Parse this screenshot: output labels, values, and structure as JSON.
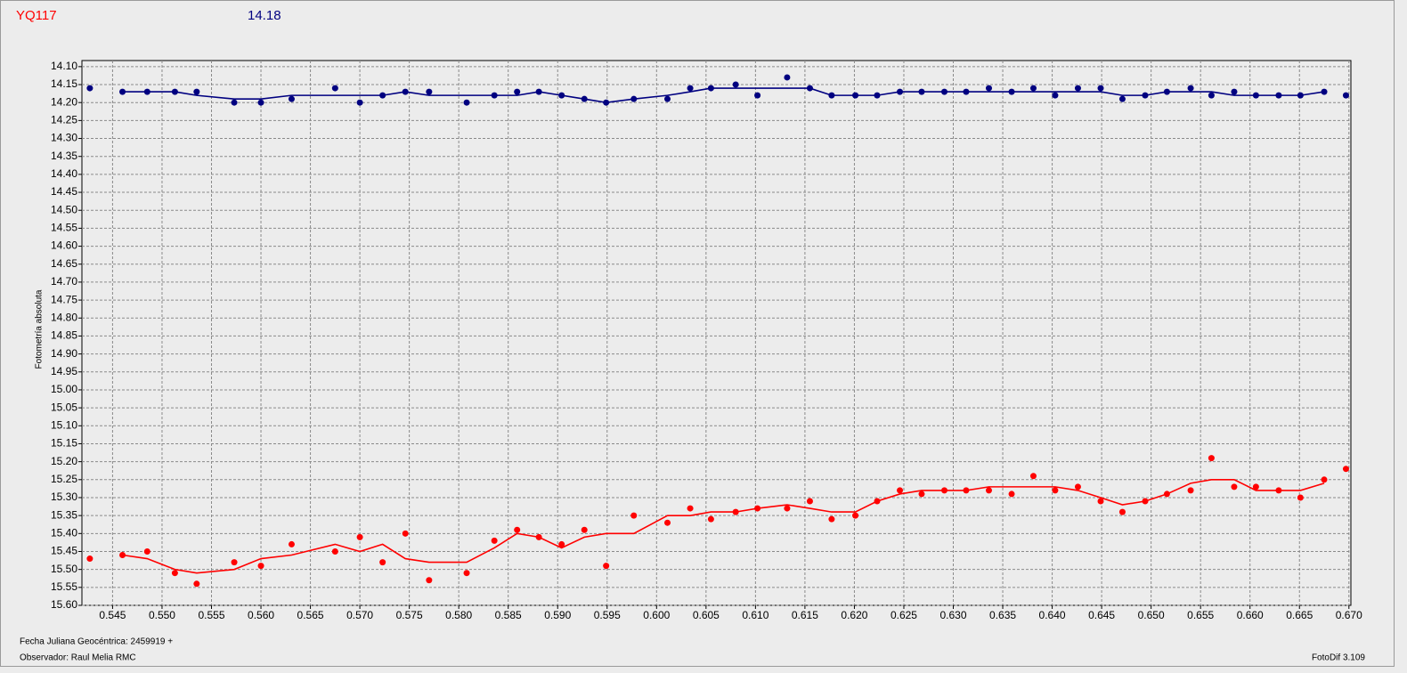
{
  "chart_data": {
    "type": "scatter",
    "title": "YQ117",
    "subtitle": "14.18",
    "title_color": "#ff0000",
    "subtitle_color": "#000080",
    "y_label": "Fotometría absoluta",
    "x_label": "Fecha Juliana Geocéntrica: 2459919 +",
    "observer": "Observador: Raul Melia RMC",
    "software": "FotoDif 3.109",
    "grid": true,
    "xlim": [
      0.5419,
      0.6702
    ],
    "ylim": [
      15.6,
      14.083
    ],
    "xticks": [
      0.545,
      {
        "value": 0.55,
        "label": "0.550"
      },
      0.555,
      {
        "value": 0.56,
        "label": "0.560"
      },
      0.565,
      {
        "value": 0.57,
        "label": "0.570"
      },
      0.575,
      {
        "value": 0.58,
        "label": "0.580"
      },
      0.585,
      {
        "value": 0.59,
        "label": "0.590"
      },
      0.595,
      {
        "value": 0.6,
        "label": "0.600"
      },
      0.605,
      {
        "value": 0.61,
        "label": "0.610"
      },
      0.615,
      {
        "value": 0.62,
        "label": "0.620"
      },
      0.625,
      {
        "value": 0.63,
        "label": "0.630"
      },
      0.635,
      {
        "value": 0.64,
        "label": "0.640"
      },
      0.645,
      {
        "value": 0.65,
        "label": "0.650"
      },
      0.655,
      {
        "value": 0.66,
        "label": "0.660"
      },
      0.665,
      {
        "value": 0.67,
        "label": "0.670"
      }
    ],
    "yticks": [
      {
        "value": 14.1,
        "label": "14.10"
      },
      14.15,
      {
        "value": 14.2,
        "label": "14.20"
      },
      14.25,
      {
        "value": 14.3,
        "label": "14.30"
      },
      14.35,
      {
        "value": 14.4,
        "label": "14.40"
      },
      14.45,
      {
        "value": 14.5,
        "label": "14.50"
      },
      14.55,
      {
        "value": 14.6,
        "label": "14.60"
      },
      14.65,
      {
        "value": 14.7,
        "label": "14.70"
      },
      14.75,
      {
        "value": 14.8,
        "label": "14.80"
      },
      14.85,
      {
        "value": 14.9,
        "label": "14.90"
      },
      14.95,
      {
        "value": 15,
        "label": "15.00"
      },
      15.05,
      {
        "value": 15.1,
        "label": "15.10"
      },
      15.15,
      {
        "value": 15.2,
        "label": "15.20"
      },
      15.25,
      {
        "value": 15.3,
        "label": "15.30"
      },
      15.35,
      {
        "value": 15.4,
        "label": "15.40"
      },
      15.45,
      {
        "value": 15.5,
        "label": "15.50"
      },
      15.55,
      {
        "value": 15.6,
        "label": "15.60"
      }
    ],
    "x": [
      0.5427,
      0.546,
      0.5485,
      0.5513,
      0.5535,
      0.5573,
      0.56,
      0.5631,
      0.5675,
      0.57,
      0.5723,
      0.5746,
      0.577,
      0.5808,
      0.5836,
      0.5859,
      0.5881,
      0.5904,
      0.5927,
      0.5949,
      0.5977,
      0.6011,
      0.6034,
      0.6055,
      0.608,
      0.6102,
      0.6132,
      0.6155,
      0.6177,
      0.6201,
      0.6223,
      0.6246,
      0.6268,
      0.6291,
      0.6313,
      0.6336,
      0.6359,
      0.6381,
      0.6403,
      0.6426,
      0.6449,
      0.6471,
      0.6494,
      0.6516,
      0.654,
      0.6561,
      0.6584,
      0.6606,
      0.6629,
      0.6651,
      0.6675,
      0.6697
    ],
    "series": [
      {
        "kind": "dots",
        "color": "#000080",
        "values": [
          14.16,
          14.17,
          14.17,
          14.17,
          14.17,
          14.2,
          14.2,
          14.19,
          14.16,
          14.2,
          14.18,
          14.17,
          14.17,
          14.2,
          14.18,
          14.17,
          14.17,
          14.18,
          14.19,
          14.2,
          14.19,
          14.19,
          14.16,
          14.16,
          14.15,
          14.18,
          14.13,
          14.16,
          14.18,
          14.18,
          14.18,
          14.17,
          14.17,
          14.17,
          14.17,
          14.16,
          14.17,
          14.16,
          14.18,
          14.16,
          14.16,
          14.19,
          14.18,
          14.17,
          14.16,
          14.18,
          14.17,
          14.18,
          14.18,
          14.18,
          14.17,
          14.18
        ]
      },
      {
        "kind": "line",
        "color": "#000080",
        "values": [
          null,
          14.17,
          14.17,
          14.17,
          14.18,
          14.19,
          14.19,
          14.18,
          14.18,
          14.18,
          14.18,
          14.17,
          14.18,
          14.18,
          14.18,
          14.18,
          14.17,
          14.18,
          14.19,
          14.2,
          14.19,
          14.18,
          14.17,
          14.16,
          14.16,
          14.16,
          14.16,
          14.16,
          14.18,
          14.18,
          14.18,
          14.17,
          14.17,
          14.17,
          14.17,
          14.17,
          14.17,
          14.17,
          14.17,
          14.17,
          14.17,
          14.18,
          14.18,
          14.17,
          14.17,
          14.17,
          14.18,
          14.18,
          14.18,
          14.18,
          14.17,
          null
        ]
      },
      {
        "kind": "dots",
        "color": "#ff0000",
        "values": [
          15.47,
          15.46,
          15.45,
          15.51,
          15.54,
          15.48,
          15.49,
          15.43,
          15.45,
          15.41,
          15.48,
          15.4,
          15.53,
          15.51,
          15.42,
          15.39,
          15.41,
          15.43,
          15.39,
          15.49,
          15.35,
          15.37,
          15.33,
          15.36,
          15.34,
          15.33,
          15.33,
          15.31,
          15.36,
          15.35,
          15.31,
          15.28,
          15.29,
          15.28,
          15.28,
          15.28,
          15.29,
          15.24,
          15.28,
          15.27,
          15.31,
          15.34,
          15.31,
          15.29,
          15.28,
          15.19,
          15.27,
          15.27,
          15.28,
          15.3,
          15.25,
          15.22
        ]
      },
      {
        "kind": "line",
        "color": "#ff0000",
        "values": [
          null,
          15.46,
          15.47,
          15.5,
          15.51,
          15.5,
          15.47,
          15.46,
          15.43,
          15.45,
          15.43,
          15.47,
          15.48,
          15.48,
          15.44,
          15.4,
          15.41,
          15.44,
          15.41,
          15.4,
          15.4,
          15.35,
          15.35,
          15.34,
          15.34,
          15.33,
          15.32,
          15.33,
          15.34,
          15.34,
          15.31,
          15.29,
          15.28,
          15.28,
          15.28,
          15.27,
          15.27,
          15.27,
          15.27,
          15.28,
          15.3,
          15.32,
          15.31,
          15.29,
          15.26,
          15.25,
          15.25,
          15.28,
          15.28,
          15.28,
          15.26,
          null
        ]
      }
    ]
  }
}
